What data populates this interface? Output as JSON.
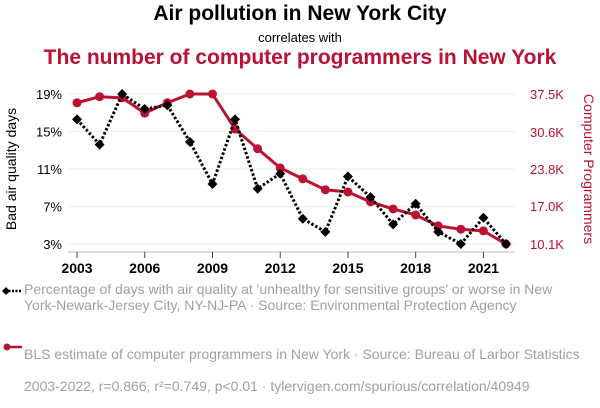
{
  "header": {
    "title": "Air pollution in New York City",
    "connector": "correlates with",
    "subtitle": "The number of computer programmers in New York"
  },
  "legend": {
    "series1": "Percentage of days with air quality at 'unhealthy for sensitive groups' or worse in New York-Newark-Jersey City, NY-NJ-PA · Source: Environmental Protection Agency",
    "series2": "BLS estimate of computer programmers in New York · Source: Bureau of Larbor Statistics"
  },
  "footer": "2003-2022, r=0.866, r²=0.749, p<0.01 · tylervigen.com/spurious/correlation/40949",
  "colors": {
    "series1": "#000000",
    "series2": "#bb1133",
    "grid": "#eeeeee",
    "axis_text": "#000000",
    "legend_text": "#a0a0a0"
  },
  "chart_data": {
    "type": "line",
    "title": "Air pollution in New York City",
    "x": [
      2003,
      2004,
      2005,
      2006,
      2007,
      2008,
      2009,
      2010,
      2011,
      2012,
      2013,
      2014,
      2015,
      2016,
      2017,
      2018,
      2019,
      2020,
      2021,
      2022
    ],
    "x_ticks": [
      "2003",
      "2006",
      "2009",
      "2012",
      "2015",
      "2018",
      "2021"
    ],
    "x_tick_values": [
      2003,
      2006,
      2009,
      2012,
      2015,
      2018,
      2021
    ],
    "xlim": [
      2002.6,
      2022.4
    ],
    "left_axis": {
      "label": "Bad air quality days",
      "ticks": [
        "3%",
        "7%",
        "11%",
        "15%",
        "19%"
      ],
      "tick_values": [
        3,
        7,
        11,
        15,
        19
      ],
      "ylim": [
        3,
        19
      ]
    },
    "right_axis": {
      "label": "Computer Programmers",
      "ticks": [
        "10.1K",
        "17.0K",
        "23.8K",
        "30.6K",
        "37.5K"
      ],
      "tick_values": [
        10.1,
        17.0,
        23.8,
        30.6,
        37.5
      ],
      "ylim": [
        10.1,
        37.5
      ]
    },
    "grid": true,
    "legend_position": "bottom",
    "series": [
      {
        "name": "Bad air quality days (%)",
        "axis": "left",
        "marker": "diamond",
        "style": "dotted",
        "values": [
          16.3,
          13.6,
          19.0,
          17.4,
          17.8,
          13.9,
          9.4,
          16.3,
          8.9,
          10.5,
          5.7,
          4.3,
          10.2,
          8.0,
          5.1,
          7.3,
          4.3,
          3.0,
          5.8,
          3.0
        ]
      },
      {
        "name": "Computer programmers (thousands)",
        "axis": "right",
        "marker": "circle",
        "style": "solid",
        "values": [
          35.9,
          37.0,
          36.8,
          34.0,
          35.9,
          37.5,
          37.5,
          31.1,
          27.5,
          24.0,
          22.0,
          20.0,
          19.6,
          17.8,
          16.5,
          15.4,
          13.4,
          12.8,
          12.5,
          10.1
        ]
      }
    ]
  }
}
